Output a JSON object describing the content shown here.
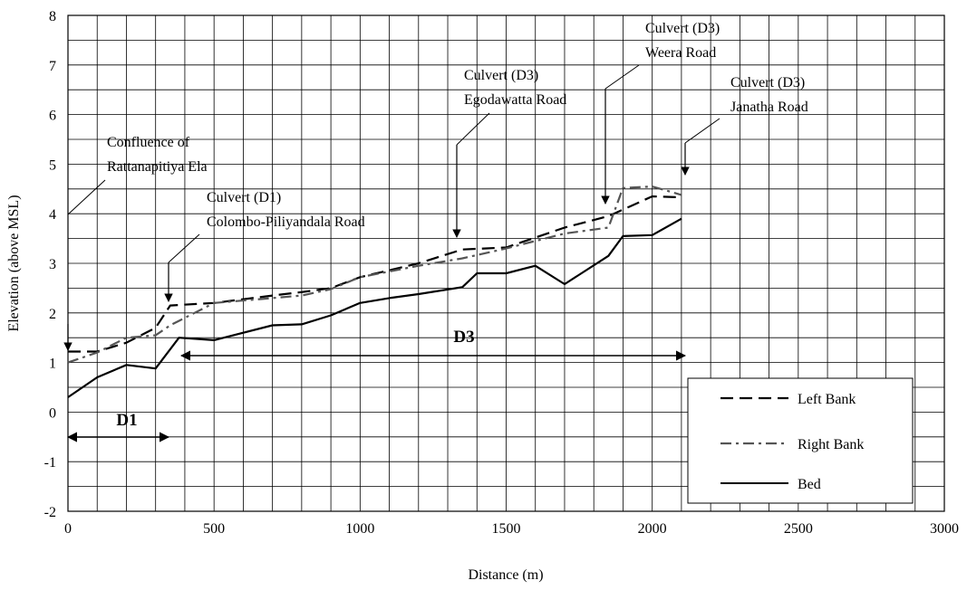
{
  "chart_data": {
    "type": "line",
    "title": "",
    "xlabel": "Distance (m)",
    "ylabel": "Elevation (above MSL)",
    "xlim": [
      0,
      3000
    ],
    "ylim": [
      -2,
      8
    ],
    "x_ticks": [
      "0",
      "500",
      "1000",
      "1500",
      "2000",
      "2500",
      "3000"
    ],
    "y_ticks": [
      "-2",
      "-1",
      "0",
      "1",
      "2",
      "3",
      "4",
      "5",
      "6",
      "7",
      "8"
    ],
    "grid": true,
    "legend_position": "bottom-right",
    "series": [
      {
        "name": "Left Bank",
        "style": "dashed",
        "color": "#000000",
        "points": [
          [
            0,
            1.22
          ],
          [
            100,
            1.22
          ],
          [
            200,
            1.4
          ],
          [
            300,
            1.7
          ],
          [
            350,
            2.15
          ],
          [
            500,
            2.2
          ],
          [
            700,
            2.35
          ],
          [
            800,
            2.42
          ],
          [
            900,
            2.5
          ],
          [
            1000,
            2.72
          ],
          [
            1200,
            3.0
          ],
          [
            1350,
            3.28
          ],
          [
            1500,
            3.32
          ],
          [
            1600,
            3.52
          ],
          [
            1700,
            3.72
          ],
          [
            1850,
            3.95
          ],
          [
            2000,
            4.35
          ],
          [
            2100,
            4.33
          ]
        ]
      },
      {
        "name": "Right Bank",
        "style": "dash-dot",
        "color": "#555555",
        "points": [
          [
            0,
            1.0
          ],
          [
            100,
            1.2
          ],
          [
            200,
            1.5
          ],
          [
            300,
            1.55
          ],
          [
            350,
            1.75
          ],
          [
            500,
            2.2
          ],
          [
            700,
            2.3
          ],
          [
            800,
            2.35
          ],
          [
            900,
            2.48
          ],
          [
            1000,
            2.72
          ],
          [
            1200,
            2.95
          ],
          [
            1350,
            3.1
          ],
          [
            1500,
            3.3
          ],
          [
            1600,
            3.45
          ],
          [
            1700,
            3.6
          ],
          [
            1850,
            3.72
          ],
          [
            1900,
            4.52
          ],
          [
            2000,
            4.55
          ],
          [
            2100,
            4.38
          ]
        ]
      },
      {
        "name": "Bed",
        "style": "solid",
        "color": "#000000",
        "points": [
          [
            0,
            0.3
          ],
          [
            100,
            0.7
          ],
          [
            200,
            0.95
          ],
          [
            300,
            0.88
          ],
          [
            380,
            1.5
          ],
          [
            500,
            1.45
          ],
          [
            700,
            1.75
          ],
          [
            800,
            1.77
          ],
          [
            900,
            1.95
          ],
          [
            1000,
            2.2
          ],
          [
            1100,
            2.3
          ],
          [
            1200,
            2.38
          ],
          [
            1350,
            2.52
          ],
          [
            1400,
            2.8
          ],
          [
            1500,
            2.8
          ],
          [
            1600,
            2.95
          ],
          [
            1700,
            2.58
          ],
          [
            1850,
            3.15
          ],
          [
            1900,
            3.55
          ],
          [
            2000,
            3.57
          ],
          [
            2100,
            3.9
          ]
        ]
      }
    ],
    "annotations": [
      {
        "lines": [
          "Confluence of",
          "Rattanapitiya Ela"
        ],
        "arrow_to": [
          0,
          1.6
        ]
      },
      {
        "lines": [
          "Culvert (D1)",
          "Colombo-Piliyandala Road"
        ],
        "arrow_to": [
          345,
          2.2
        ]
      },
      {
        "lines": [
          "Culvert (D3)",
          "Egodawatta Road"
        ],
        "arrow_to": [
          1320,
          3.55
        ]
      },
      {
        "lines": [
          "Culvert (D3)",
          "Weera Road"
        ],
        "arrow_to": [
          1820,
          4.4
        ]
      },
      {
        "lines": [
          "Culvert (D3)",
          "Janatha Road"
        ],
        "arrow_to": [
          2090,
          4.35
        ]
      }
    ],
    "regions": [
      {
        "label": "D1",
        "x": [
          0,
          345
        ],
        "y": -0.5
      },
      {
        "label": "D3",
        "x": [
          390,
          2100
        ],
        "y": 1.1
      }
    ]
  }
}
